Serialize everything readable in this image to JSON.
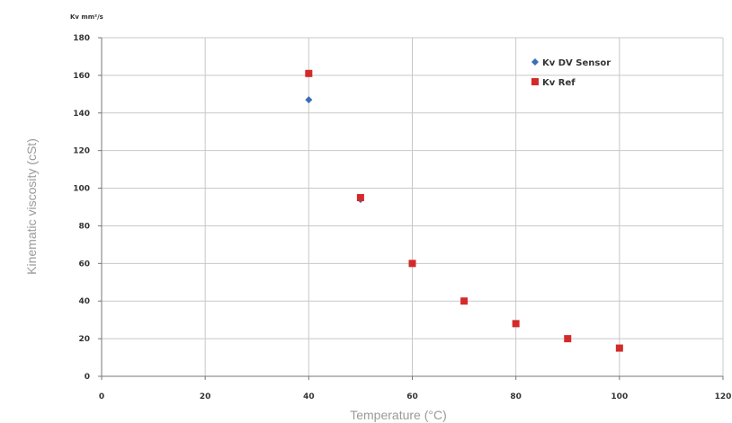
{
  "chart_data": {
    "type": "scatter",
    "xlabel": "Temperature (°C)",
    "ylabel": "Kinematic viscosity (cSt)",
    "y_unit": "Kv mm²/s",
    "xlim": [
      0,
      120
    ],
    "ylim": [
      0,
      180
    ],
    "x_ticks": [
      0,
      20,
      40,
      60,
      80,
      100,
      120
    ],
    "y_ticks": [
      0,
      20,
      40,
      60,
      80,
      100,
      120,
      140,
      160,
      180
    ],
    "grid": {
      "horizontal": true,
      "vertical": true
    },
    "legend_position": "top-right",
    "series": [
      {
        "name": "Kv DV Sensor",
        "marker": "diamond",
        "color": "#3a6fb5",
        "x": [
          40,
          50
        ],
        "y": [
          147,
          94
        ]
      },
      {
        "name": "Kv Ref",
        "marker": "square",
        "color": "#d42a2a",
        "x": [
          40,
          50,
          60,
          70,
          80,
          90,
          100
        ],
        "y": [
          161,
          95,
          60,
          40,
          28,
          20,
          15
        ]
      }
    ]
  }
}
